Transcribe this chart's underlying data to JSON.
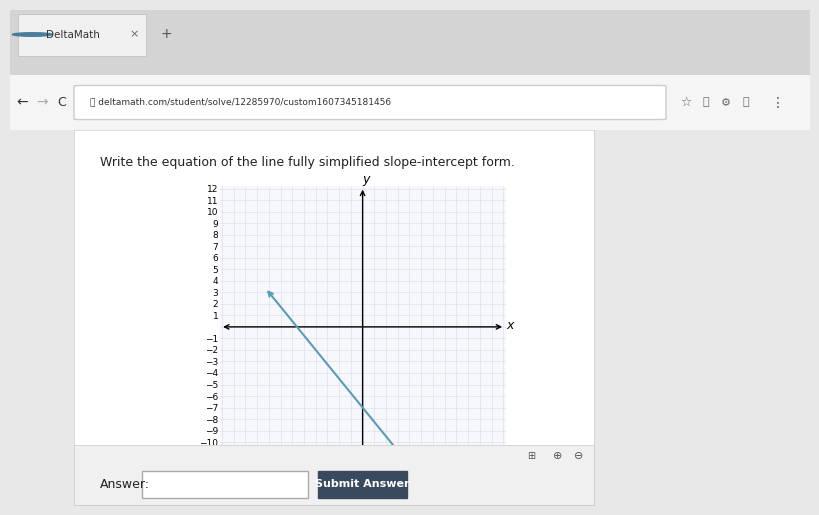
{
  "title": "Write the equation of the line fully simplified slope-intercept form.",
  "x_range": [
    -12,
    12
  ],
  "y_range": [
    -12,
    12
  ],
  "line_x1": -8,
  "line_y1": 3,
  "line_x2": 4,
  "line_y2": -12,
  "line_color": "#5b9bb5",
  "line_width": 1.5,
  "grid_color": "#d8dce8",
  "plot_bg_color": "#f7f8fc",
  "tick_fontsize": 6.5,
  "axis_label_fontsize": 9,
  "title_fontsize": 11,
  "browser_bg": "#e8e8e8",
  "tab_bar_color": "#d4d4d4",
  "page_bg": "#ffffff",
  "content_bg": "#ffffff",
  "answer_box_bg": "#f0f0f0",
  "answer_label": "Answer:",
  "submit_label": "Submit Answer",
  "submit_btn_color": "#3a4a5e",
  "browser_url": "deltamath.com/student/solve/12285970/custom1607345181456",
  "tab_label": "DeltaMath"
}
